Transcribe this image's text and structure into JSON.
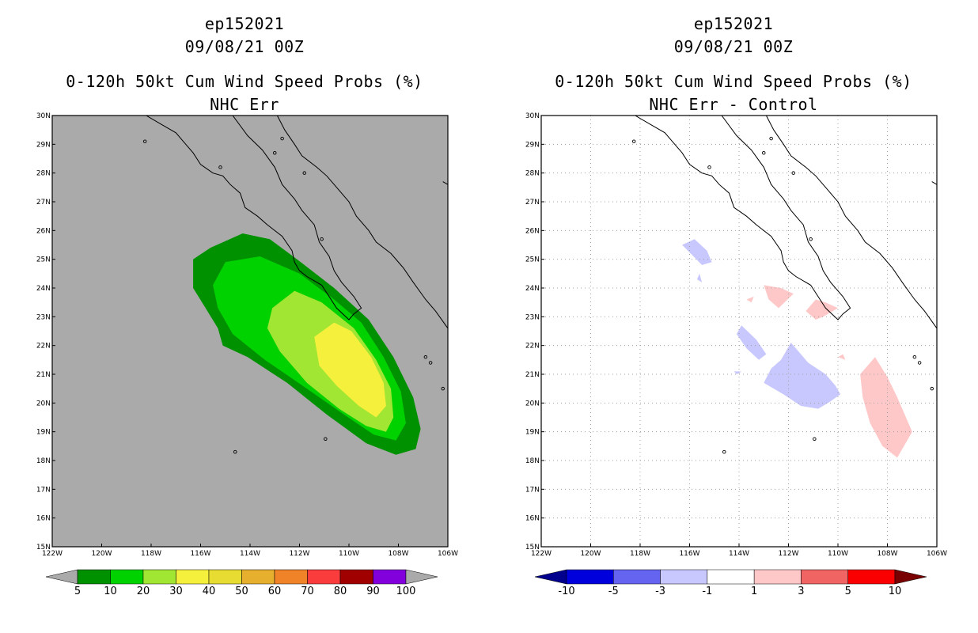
{
  "colors": {
    "land_bg": "#aaaaaa",
    "coast": "#000000",
    "grid": "#a0a0a0"
  },
  "chart_data": [
    {
      "type": "heatmap",
      "title_lines": [
        "ep152021",
        "09/08/21 00Z",
        "0-120h 50kt Cum Wind Speed Probs (%)",
        "NHC Err"
      ],
      "xlabel": "",
      "ylabel": "",
      "xlim": [
        -122,
        -106
      ],
      "ylim": [
        15,
        30
      ],
      "x_ticks": [
        -122,
        -120,
        -118,
        -116,
        -114,
        -112,
        -110,
        -108,
        -106
      ],
      "x_tick_labels": [
        "122W",
        "120W",
        "118W",
        "116W",
        "114W",
        "112W",
        "110W",
        "108W",
        "106W"
      ],
      "y_ticks": [
        15,
        16,
        17,
        18,
        19,
        20,
        21,
        22,
        23,
        24,
        25,
        26,
        27,
        28,
        29,
        30
      ],
      "y_tick_labels": [
        "15N",
        "16N",
        "17N",
        "18N",
        "19N",
        "20N",
        "21N",
        "22N",
        "23N",
        "24N",
        "25N",
        "26N",
        "27N",
        "28N",
        "29N",
        "30N"
      ],
      "grid": false,
      "background": "#aaaaaa",
      "contours": [
        {
          "level": 5,
          "color": "#009100",
          "points": [
            [
              -116.3,
              25.0
            ],
            [
              -115.6,
              25.4
            ],
            [
              -114.3,
              25.9
            ],
            [
              -113.2,
              25.7
            ],
            [
              -112.1,
              25.0
            ],
            [
              -110.6,
              24.0
            ],
            [
              -109.2,
              22.9
            ],
            [
              -108.2,
              21.6
            ],
            [
              -107.4,
              20.2
            ],
            [
              -107.1,
              19.1
            ],
            [
              -107.3,
              18.4
            ],
            [
              -108.1,
              18.2
            ],
            [
              -109.3,
              18.6
            ],
            [
              -110.9,
              19.6
            ],
            [
              -112.5,
              20.7
            ],
            [
              -114.1,
              21.6
            ],
            [
              -115.1,
              22.0
            ],
            [
              -115.3,
              22.6
            ],
            [
              -115.8,
              23.3
            ],
            [
              -116.3,
              24.0
            ]
          ]
        },
        {
          "level": 10,
          "color": "#00d200",
          "points": [
            [
              -115.5,
              24.1
            ],
            [
              -115.0,
              24.9
            ],
            [
              -113.6,
              25.1
            ],
            [
              -112.0,
              24.5
            ],
            [
              -110.6,
              23.6
            ],
            [
              -109.5,
              22.8
            ],
            [
              -108.6,
              21.6
            ],
            [
              -107.9,
              20.4
            ],
            [
              -107.7,
              19.3
            ],
            [
              -108.1,
              18.7
            ],
            [
              -109.0,
              18.9
            ],
            [
              -110.2,
              19.6
            ],
            [
              -111.7,
              20.5
            ],
            [
              -113.4,
              21.5
            ],
            [
              -114.7,
              22.4
            ],
            [
              -115.3,
              23.3
            ]
          ]
        },
        {
          "level": 20,
          "color": "#a0e632",
          "points": [
            [
              -113.1,
              23.3
            ],
            [
              -112.2,
              23.9
            ],
            [
              -111.1,
              23.5
            ],
            [
              -109.8,
              22.6
            ],
            [
              -108.9,
              21.5
            ],
            [
              -108.3,
              20.5
            ],
            [
              -108.2,
              19.5
            ],
            [
              -108.5,
              19.0
            ],
            [
              -109.3,
              19.2
            ],
            [
              -110.4,
              19.8
            ],
            [
              -111.7,
              20.7
            ],
            [
              -112.8,
              21.8
            ],
            [
              -113.3,
              22.6
            ]
          ]
        },
        {
          "level": 30,
          "color": "#f5f03c",
          "points": [
            [
              -111.4,
              22.3
            ],
            [
              -110.6,
              22.8
            ],
            [
              -109.9,
              22.5
            ],
            [
              -109.1,
              21.6
            ],
            [
              -108.6,
              20.7
            ],
            [
              -108.5,
              19.9
            ],
            [
              -108.9,
              19.5
            ],
            [
              -109.6,
              19.9
            ],
            [
              -110.5,
              20.6
            ],
            [
              -111.2,
              21.3
            ]
          ]
        }
      ],
      "colorbar": {
        "labels": [
          "5",
          "10",
          "20",
          "30",
          "40",
          "50",
          "60",
          "70",
          "80",
          "90",
          "100"
        ],
        "colors": [
          "#009100",
          "#00d200",
          "#a0e632",
          "#f5f03c",
          "#e6dc32",
          "#e6af2d",
          "#f08228",
          "#fa3c3c",
          "#a00000",
          "#8200dc"
        ],
        "under_color": "#aaaaaa",
        "over_color": "#aaaaaa"
      }
    },
    {
      "type": "heatmap",
      "title_lines": [
        "ep152021",
        "09/08/21 00Z",
        "0-120h 50kt Cum Wind Speed Probs (%)",
        "NHC Err - Control"
      ],
      "xlabel": "",
      "ylabel": "",
      "xlim": [
        -122,
        -106
      ],
      "ylim": [
        15,
        30
      ],
      "x_ticks": [
        -122,
        -120,
        -118,
        -116,
        -114,
        -112,
        -110,
        -108,
        -106
      ],
      "x_tick_labels": [
        "122W",
        "120W",
        "118W",
        "116W",
        "114W",
        "112W",
        "110W",
        "108W",
        "106W"
      ],
      "y_ticks": [
        15,
        16,
        17,
        18,
        19,
        20,
        21,
        22,
        23,
        24,
        25,
        26,
        27,
        28,
        29,
        30
      ],
      "y_tick_labels": [
        "15N",
        "16N",
        "17N",
        "18N",
        "19N",
        "20N",
        "21N",
        "22N",
        "23N",
        "24N",
        "25N",
        "26N",
        "27N",
        "28N",
        "29N",
        "30N"
      ],
      "grid": true,
      "background": "#ffffff",
      "contours": [
        {
          "level": -1,
          "color": "#c8c8ff",
          "points": [
            [
              -116.3,
              25.5
            ],
            [
              -115.8,
              25.7
            ],
            [
              -115.3,
              25.3
            ],
            [
              -115.1,
              24.9
            ],
            [
              -115.5,
              24.8
            ]
          ]
        },
        {
          "level": -1,
          "color": "#c8c8ff",
          "points": [
            [
              -113.9,
              22.7
            ],
            [
              -113.3,
              22.2
            ],
            [
              -112.9,
              21.7
            ],
            [
              -113.2,
              21.5
            ],
            [
              -113.7,
              21.9
            ],
            [
              -114.1,
              22.4
            ]
          ]
        },
        {
          "level": -1,
          "color": "#c8c8ff",
          "points": [
            [
              -111.9,
              22.1
            ],
            [
              -111.2,
              21.4
            ],
            [
              -110.5,
              21.0
            ],
            [
              -110.1,
              20.6
            ],
            [
              -109.9,
              20.3
            ],
            [
              -110.4,
              20.0
            ],
            [
              -110.8,
              19.8
            ],
            [
              -111.5,
              19.9
            ],
            [
              -112.2,
              20.3
            ],
            [
              -113.0,
              20.7
            ],
            [
              -112.7,
              21.2
            ],
            [
              -112.3,
              21.5
            ]
          ]
        },
        {
          "level": -1,
          "color": "#c8c8ff",
          "points": [
            [
              -115.7,
              24.3
            ],
            [
              -115.6,
              24.5
            ],
            [
              -115.5,
              24.2
            ]
          ]
        },
        {
          "level": -1,
          "color": "#c8c8ff",
          "points": [
            [
              -114.2,
              21.1
            ],
            [
              -113.9,
              21.1
            ],
            [
              -114.1,
              21.0
            ]
          ]
        },
        {
          "level": 1,
          "color": "#ffc8c8",
          "points": [
            [
              -113.0,
              24.1
            ],
            [
              -112.3,
              24.0
            ],
            [
              -111.8,
              23.8
            ],
            [
              -112.4,
              23.3
            ],
            [
              -112.8,
              23.6
            ]
          ]
        },
        {
          "level": 1,
          "color": "#ffc8c8",
          "points": [
            [
              -111.3,
              23.2
            ],
            [
              -110.9,
              23.6
            ],
            [
              -110.5,
              23.5
            ],
            [
              -110.0,
              23.3
            ],
            [
              -110.6,
              23.0
            ],
            [
              -110.9,
              22.9
            ]
          ]
        },
        {
          "level": 1,
          "color": "#ffc8c8",
          "points": [
            [
              -109.1,
              21.0
            ],
            [
              -108.5,
              21.6
            ],
            [
              -108.0,
              20.9
            ],
            [
              -107.6,
              20.2
            ],
            [
              -107.3,
              19.6
            ],
            [
              -107.0,
              19.0
            ],
            [
              -107.6,
              18.1
            ],
            [
              -108.2,
              18.5
            ],
            [
              -108.7,
              19.3
            ],
            [
              -109.0,
              20.2
            ]
          ]
        },
        {
          "level": 1,
          "color": "#ffc8c8",
          "points": [
            [
              -113.7,
              23.6
            ],
            [
              -113.4,
              23.7
            ],
            [
              -113.5,
              23.5
            ]
          ]
        },
        {
          "level": 1,
          "color": "#ffc8c8",
          "points": [
            [
              -110.0,
              21.6
            ],
            [
              -109.8,
              21.7
            ],
            [
              -109.7,
              21.5
            ]
          ]
        }
      ],
      "colorbar": {
        "labels": [
          "-10",
          "-5",
          "-3",
          "-1",
          "1",
          "3",
          "5",
          "10"
        ],
        "colors": [
          "#0000dc",
          "#6464f0",
          "#c8c8ff",
          "#ffffff",
          "#ffc8c8",
          "#f06464",
          "#fa0000"
        ],
        "under_color": "#00008c",
        "over_color": "#780000"
      }
    }
  ],
  "coastline_paths": [
    [
      [
        -118.2,
        30.0
      ],
      [
        -117.6,
        29.7
      ],
      [
        -117.0,
        29.4
      ],
      [
        -116.7,
        29.1
      ],
      [
        -116.3,
        28.7
      ],
      [
        -116.0,
        28.3
      ],
      [
        -115.5,
        28.0
      ],
      [
        -115.1,
        27.9
      ],
      [
        -114.8,
        27.6
      ],
      [
        -114.4,
        27.3
      ],
      [
        -114.2,
        26.8
      ],
      [
        -113.7,
        26.5
      ],
      [
        -113.3,
        26.2
      ],
      [
        -112.7,
        25.8
      ],
      [
        -112.3,
        25.3
      ],
      [
        -112.2,
        24.9
      ],
      [
        -112.0,
        24.6
      ],
      [
        -111.7,
        24.4
      ],
      [
        -111.1,
        24.1
      ],
      [
        -110.8,
        23.7
      ],
      [
        -110.5,
        23.3
      ],
      [
        -110.0,
        22.9
      ],
      [
        -109.8,
        23.1
      ],
      [
        -109.5,
        23.3
      ],
      [
        -109.8,
        23.7
      ],
      [
        -110.3,
        24.2
      ],
      [
        -110.6,
        24.6
      ],
      [
        -110.8,
        25.1
      ],
      [
        -111.2,
        25.6
      ],
      [
        -111.4,
        26.2
      ],
      [
        -111.9,
        26.7
      ],
      [
        -112.2,
        27.1
      ],
      [
        -112.7,
        27.6
      ],
      [
        -113.0,
        28.2
      ],
      [
        -113.5,
        28.8
      ],
      [
        -114.1,
        29.3
      ],
      [
        -114.7,
        30.0
      ]
    ],
    [
      [
        -112.9,
        30.0
      ],
      [
        -112.6,
        29.5
      ],
      [
        -112.2,
        29.0
      ],
      [
        -111.9,
        28.6
      ],
      [
        -111.3,
        28.2
      ],
      [
        -110.9,
        27.9
      ],
      [
        -110.5,
        27.5
      ],
      [
        -110.0,
        27.0
      ],
      [
        -109.7,
        26.5
      ],
      [
        -109.2,
        26.0
      ],
      [
        -108.9,
        25.6
      ],
      [
        -108.3,
        25.2
      ],
      [
        -107.8,
        24.7
      ],
      [
        -107.4,
        24.2
      ],
      [
        -106.9,
        23.6
      ],
      [
        -106.5,
        23.2
      ],
      [
        -106.0,
        22.6
      ]
    ],
    [
      [
        -106.0,
        27.6
      ],
      [
        -106.2,
        27.7
      ]
    ]
  ],
  "islands": [
    [
      -118.25,
      29.1
    ],
    [
      -115.2,
      28.2
    ],
    [
      -112.7,
      29.2
    ],
    [
      -113.0,
      28.7
    ],
    [
      -111.8,
      28.0
    ],
    [
      -111.1,
      25.7
    ],
    [
      -106.9,
      21.6
    ],
    [
      -106.7,
      21.4
    ],
    [
      -106.2,
      20.5
    ],
    [
      -110.95,
      18.75
    ],
    [
      -114.6,
      18.3
    ]
  ]
}
